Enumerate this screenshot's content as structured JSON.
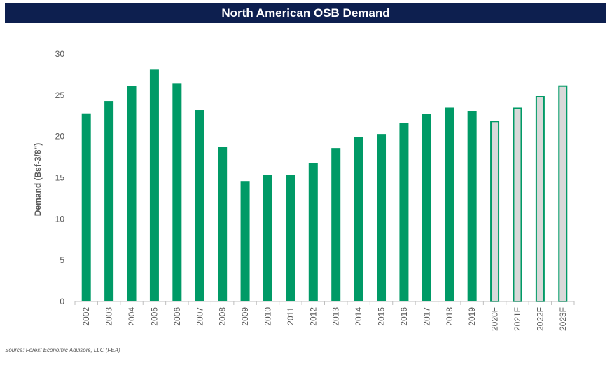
{
  "header": {
    "title": "North American OSB Demand"
  },
  "footer": {
    "source": "Source: Forest Economic Advisors, LLC (FEA)"
  },
  "colors": {
    "actual": "#009a66",
    "forecast_fill": "#d9d9d9",
    "forecast_stroke": "#009a66",
    "title_bg": "#0d1f4f"
  },
  "chart_data": {
    "type": "bar",
    "title": "North American OSB Demand",
    "xlabel": "",
    "ylabel": "Demand (Bsf-3/8\")",
    "ylim": [
      0,
      30
    ],
    "yticks": [
      0,
      5,
      10,
      15,
      20,
      25,
      30
    ],
    "grid": false,
    "categories": [
      "2002",
      "2003",
      "2004",
      "2005",
      "2006",
      "2007",
      "2008",
      "2009",
      "2010",
      "2011",
      "2012",
      "2013",
      "2014",
      "2015",
      "2016",
      "2017",
      "2018",
      "2019",
      "2020F",
      "2021F",
      "2022F",
      "2023F"
    ],
    "values": [
      22.8,
      24.3,
      26.1,
      28.1,
      26.4,
      23.2,
      18.7,
      14.6,
      15.3,
      15.3,
      16.8,
      18.6,
      19.9,
      20.3,
      21.6,
      22.7,
      23.5,
      23.1,
      21.9,
      23.5,
      24.9,
      26.2
    ],
    "forecast": [
      false,
      false,
      false,
      false,
      false,
      false,
      false,
      false,
      false,
      false,
      false,
      false,
      false,
      false,
      false,
      false,
      false,
      false,
      true,
      true,
      true,
      true
    ]
  }
}
